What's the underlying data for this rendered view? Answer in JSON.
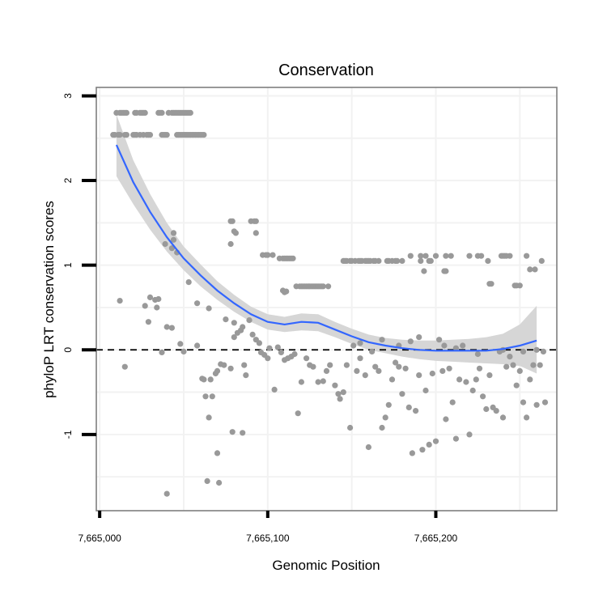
{
  "chart_data": {
    "type": "scatter",
    "title": "Conservation",
    "xlabel": "Genomic Position",
    "ylabel": "phyloP LRT conservation scores",
    "xlim": [
      7664998,
      7665272
    ],
    "ylim": [
      -1.9,
      3.1
    ],
    "x_ticks": [
      {
        "value": 7665000,
        "label": "7,665,000"
      },
      {
        "value": 7665100,
        "label": "7,665,100"
      },
      {
        "value": 7665200,
        "label": "7,665,200"
      }
    ],
    "y_ticks": [
      {
        "value": -1,
        "label": "-1"
      },
      {
        "value": 0,
        "label": "0"
      },
      {
        "value": 1,
        "label": "1"
      },
      {
        "value": 2,
        "label": "2"
      },
      {
        "value": 3,
        "label": "3"
      }
    ],
    "grid": true,
    "reference_line": {
      "y": 0,
      "style": "dashed"
    },
    "colors": {
      "points": "#999999",
      "smooth_line": "#3366ff",
      "confidence_band": "#d6d6d6",
      "panel_border": "#7f7f7f",
      "grid": "#f2f2f2"
    },
    "points": [
      [
        7665010,
        2.8
      ],
      [
        7665012,
        2.8
      ],
      [
        7665013,
        2.8
      ],
      [
        7665014,
        2.8
      ],
      [
        7665015,
        2.8
      ],
      [
        7665016,
        2.8
      ],
      [
        7665021,
        2.8
      ],
      [
        7665022,
        2.8
      ],
      [
        7665024,
        2.8
      ],
      [
        7665025,
        2.8
      ],
      [
        7665026,
        2.8
      ],
      [
        7665027,
        2.8
      ],
      [
        7665035,
        2.8
      ],
      [
        7665036,
        2.8
      ],
      [
        7665037,
        2.8
      ],
      [
        7665041,
        2.8
      ],
      [
        7665043,
        2.8
      ],
      [
        7665044,
        2.8
      ],
      [
        7665045,
        2.8
      ],
      [
        7665046,
        2.8
      ],
      [
        7665047,
        2.8
      ],
      [
        7665048,
        2.8
      ],
      [
        7665049,
        2.8
      ],
      [
        7665050,
        2.8
      ],
      [
        7665051,
        2.8
      ],
      [
        7665052,
        2.8
      ],
      [
        7665053,
        2.8
      ],
      [
        7665054,
        2.8
      ],
      [
        7665008,
        2.54
      ],
      [
        7665009,
        2.54
      ],
      [
        7665011,
        2.54
      ],
      [
        7665012,
        2.54
      ],
      [
        7665015,
        2.54
      ],
      [
        7665016,
        2.54
      ],
      [
        7665020,
        2.54
      ],
      [
        7665021,
        2.54
      ],
      [
        7665022,
        2.54
      ],
      [
        7665024,
        2.54
      ],
      [
        7665026,
        2.54
      ],
      [
        7665028,
        2.54
      ],
      [
        7665029,
        2.54
      ],
      [
        7665030,
        2.54
      ],
      [
        7665037,
        2.54
      ],
      [
        7665038,
        2.54
      ],
      [
        7665039,
        2.54
      ],
      [
        7665040,
        2.54
      ],
      [
        7665046,
        2.54
      ],
      [
        7665047,
        2.54
      ],
      [
        7665048,
        2.54
      ],
      [
        7665049,
        2.54
      ],
      [
        7665050,
        2.54
      ],
      [
        7665051,
        2.54
      ],
      [
        7665052,
        2.54
      ],
      [
        7665053,
        2.54
      ],
      [
        7665054,
        2.54
      ],
      [
        7665055,
        2.54
      ],
      [
        7665056,
        2.54
      ],
      [
        7665057,
        2.54
      ],
      [
        7665058,
        2.54
      ],
      [
        7665059,
        2.54
      ],
      [
        7665060,
        2.54
      ],
      [
        7665061,
        2.54
      ],
      [
        7665062,
        2.54
      ],
      [
        7665078,
        1.52
      ],
      [
        7665079,
        1.52
      ],
      [
        7665090,
        1.52
      ],
      [
        7665092,
        1.52
      ],
      [
        7665093,
        1.52
      ],
      [
        7665080,
        1.4
      ],
      [
        7665081,
        1.38
      ],
      [
        7665078,
        1.25
      ],
      [
        7665093,
        1.38
      ],
      [
        7665044,
        1.38
      ],
      [
        7665039,
        1.25
      ],
      [
        7665043,
        1.2
      ],
      [
        7665044,
        1.3
      ],
      [
        7665046,
        1.15
      ],
      [
        7665097,
        1.12
      ],
      [
        7665099,
        1.12
      ],
      [
        7665100,
        1.12
      ],
      [
        7665103,
        1.12
      ],
      [
        7665107,
        1.08
      ],
      [
        7665109,
        1.08
      ],
      [
        7665110,
        1.08
      ],
      [
        7665111,
        1.08
      ],
      [
        7665112,
        1.08
      ],
      [
        7665113,
        1.08
      ],
      [
        7665114,
        1.08
      ],
      [
        7665115,
        1.08
      ],
      [
        7665145,
        1.05
      ],
      [
        7665146,
        1.05
      ],
      [
        7665147,
        1.05
      ],
      [
        7665149,
        1.05
      ],
      [
        7665150,
        1.05
      ],
      [
        7665152,
        1.05
      ],
      [
        7665154,
        1.05
      ],
      [
        7665155,
        1.05
      ],
      [
        7665156,
        1.05
      ],
      [
        7665158,
        1.05
      ],
      [
        7665159,
        1.05
      ],
      [
        7665160,
        1.05
      ],
      [
        7665161,
        1.05
      ],
      [
        7665163,
        1.05
      ],
      [
        7665164,
        1.05
      ],
      [
        7665166,
        1.05
      ],
      [
        7665171,
        1.05
      ],
      [
        7665172,
        1.05
      ],
      [
        7665174,
        1.05
      ],
      [
        7665176,
        1.05
      ],
      [
        7665177,
        1.05
      ],
      [
        7665180,
        1.05
      ],
      [
        7665185,
        1.11
      ],
      [
        7665191,
        1.11
      ],
      [
        7665194,
        1.11
      ],
      [
        7665200,
        1.11
      ],
      [
        7665206,
        1.11
      ],
      [
        7665209,
        1.11
      ],
      [
        7665220,
        1.11
      ],
      [
        7665225,
        1.11
      ],
      [
        7665227,
        1.11
      ],
      [
        7665239,
        1.11
      ],
      [
        7665240,
        1.11
      ],
      [
        7665241,
        1.11
      ],
      [
        7665242,
        1.11
      ],
      [
        7665244,
        1.11
      ],
      [
        7665254,
        1.11
      ],
      [
        7665263,
        1.05
      ],
      [
        7665191,
        1.05
      ],
      [
        7665196,
        1.05
      ],
      [
        7665197,
        1.05
      ],
      [
        7665231,
        1.05
      ],
      [
        7665193,
        0.93
      ],
      [
        7665205,
        0.93
      ],
      [
        7665206,
        0.93
      ],
      [
        7665256,
        0.95
      ],
      [
        7665259,
        0.95
      ],
      [
        7665232,
        0.78
      ],
      [
        7665233,
        0.78
      ],
      [
        7665247,
        0.76
      ],
      [
        7665248,
        0.76
      ],
      [
        7665250,
        0.76
      ],
      [
        7665117,
        0.75
      ],
      [
        7665119,
        0.75
      ],
      [
        7665120,
        0.75
      ],
      [
        7665121,
        0.75
      ],
      [
        7665122,
        0.75
      ],
      [
        7665123,
        0.75
      ],
      [
        7665124,
        0.75
      ],
      [
        7665125,
        0.75
      ],
      [
        7665126,
        0.75
      ],
      [
        7665127,
        0.75
      ],
      [
        7665128,
        0.75
      ],
      [
        7665129,
        0.75
      ],
      [
        7665130,
        0.75
      ],
      [
        7665131,
        0.75
      ],
      [
        7665132,
        0.75
      ],
      [
        7665133,
        0.75
      ],
      [
        7665136,
        0.75
      ],
      [
        7665109,
        0.7
      ],
      [
        7665110,
        0.68
      ],
      [
        7665111,
        0.69
      ],
      [
        7665053,
        0.8
      ],
      [
        7665012,
        0.58
      ],
      [
        7665030,
        0.62
      ],
      [
        7665033,
        0.59
      ],
      [
        7665035,
        0.6
      ],
      [
        7665027,
        0.52
      ],
      [
        7665058,
        0.55
      ],
      [
        7665065,
        0.49
      ],
      [
        7665075,
        0.36
      ],
      [
        7665080,
        0.32
      ],
      [
        7665085,
        0.27
      ],
      [
        7665029,
        0.33
      ],
      [
        7665034,
        0.5
      ],
      [
        7665040,
        0.27
      ],
      [
        7665043,
        0.26
      ],
      [
        7665037,
        -0.03
      ],
      [
        7665015,
        -0.2
      ],
      [
        7665048,
        0.07
      ],
      [
        7665050,
        -0.02
      ],
      [
        7665058,
        0.05
      ],
      [
        7665061,
        -0.34
      ],
      [
        7665062,
        -0.35
      ],
      [
        7665063,
        -0.55
      ],
      [
        7665065,
        -0.8
      ],
      [
        7665066,
        -0.35
      ],
      [
        7665067,
        -0.55
      ],
      [
        7665069,
        -0.28
      ],
      [
        7665072,
        -0.17
      ],
      [
        7665074,
        -0.18
      ],
      [
        7665078,
        -0.22
      ],
      [
        7665080,
        0.15
      ],
      [
        7665082,
        0.2
      ],
      [
        7665084,
        0.23
      ],
      [
        7665086,
        -0.18
      ],
      [
        7665087,
        -0.3
      ],
      [
        7665089,
        0.35
      ],
      [
        7665091,
        0.18
      ],
      [
        7665093,
        0.12
      ],
      [
        7665095,
        0.08
      ],
      [
        7665096,
        -0.03
      ],
      [
        7665098,
        -0.06
      ],
      [
        7665100,
        -0.1
      ],
      [
        7665101,
        0.02
      ],
      [
        7665104,
        -0.47
      ],
      [
        7665106,
        0.03
      ],
      [
        7665070,
        -0.25
      ],
      [
        7665079,
        -0.97
      ],
      [
        7665070,
        -1.22
      ],
      [
        7665064,
        -1.55
      ],
      [
        7665071,
        -1.57
      ],
      [
        7665040,
        -1.7
      ],
      [
        7665085,
        -0.98
      ],
      [
        7665108,
        -0.03
      ],
      [
        7665110,
        -0.12
      ],
      [
        7665112,
        -0.1
      ],
      [
        7665114,
        -0.08
      ],
      [
        7665116,
        -0.05
      ],
      [
        7665118,
        -0.75
      ],
      [
        7665120,
        -0.38
      ],
      [
        7665123,
        -0.1
      ],
      [
        7665125,
        -0.18
      ],
      [
        7665127,
        -0.2
      ],
      [
        7665130,
        -0.38
      ],
      [
        7665133,
        -0.37
      ],
      [
        7665135,
        -0.25
      ],
      [
        7665137,
        -0.18
      ],
      [
        7665140,
        -0.42
      ],
      [
        7665142,
        -0.52
      ],
      [
        7665143,
        -0.58
      ],
      [
        7665145,
        -0.5
      ],
      [
        7665147,
        -0.18
      ],
      [
        7665149,
        -0.92
      ],
      [
        7665151,
        0.05
      ],
      [
        7665153,
        -0.25
      ],
      [
        7665155,
        -0.1
      ],
      [
        7665158,
        -0.3
      ],
      [
        7665160,
        -1.15
      ],
      [
        7665162,
        -0.02
      ],
      [
        7665164,
        -0.2
      ],
      [
        7665166,
        -0.25
      ],
      [
        7665168,
        -0.92
      ],
      [
        7665170,
        -0.8
      ],
      [
        7665172,
        -0.65
      ],
      [
        7665174,
        -0.35
      ],
      [
        7665176,
        -0.15
      ],
      [
        7665178,
        -0.2
      ],
      [
        7665180,
        -0.52
      ],
      [
        7665182,
        -0.22
      ],
      [
        7665184,
        -0.68
      ],
      [
        7665186,
        -1.22
      ],
      [
        7665188,
        -0.72
      ],
      [
        7665190,
        -0.3
      ],
      [
        7665192,
        -1.18
      ],
      [
        7665194,
        -0.48
      ],
      [
        7665196,
        -1.12
      ],
      [
        7665198,
        -0.28
      ],
      [
        7665200,
        -1.08
      ],
      [
        7665202,
        0.12
      ],
      [
        7665204,
        -0.25
      ],
      [
        7665206,
        -0.82
      ],
      [
        7665208,
        -0.22
      ],
      [
        7665210,
        -0.62
      ],
      [
        7665212,
        -1.05
      ],
      [
        7665214,
        -0.35
      ],
      [
        7665216,
        0.05
      ],
      [
        7665218,
        -0.38
      ],
      [
        7665220,
        -1.0
      ],
      [
        7665222,
        -0.48
      ],
      [
        7665224,
        -0.35
      ],
      [
        7665226,
        -0.22
      ],
      [
        7665228,
        -0.55
      ],
      [
        7665230,
        -0.7
      ],
      [
        7665232,
        -0.3
      ],
      [
        7665234,
        -0.68
      ],
      [
        7665236,
        -0.72
      ],
      [
        7665238,
        -0.02
      ],
      [
        7665240,
        -0.8
      ],
      [
        7665242,
        -0.2
      ],
      [
        7665244,
        -0.08
      ],
      [
        7665246,
        -0.18
      ],
      [
        7665248,
        -0.42
      ],
      [
        7665250,
        -0.25
      ],
      [
        7665252,
        -0.62
      ],
      [
        7665254,
        -0.8
      ],
      [
        7665256,
        -0.35
      ],
      [
        7665258,
        -0.18
      ],
      [
        7665260,
        -0.65
      ],
      [
        7665262,
        -0.18
      ],
      [
        7665264,
        -0.02
      ],
      [
        7665265,
        -0.62
      ],
      [
        7665155,
        0.08
      ],
      [
        7665168,
        0.12
      ],
      [
        7665178,
        0.05
      ],
      [
        7665185,
        0.1
      ],
      [
        7665190,
        0.15
      ],
      [
        7665205,
        0.05
      ],
      [
        7665212,
        0.02
      ],
      [
        7665225,
        -0.05
      ],
      [
        7665240,
        0.0
      ],
      [
        7665252,
        -0.02
      ],
      [
        7665260,
        0.0
      ]
    ],
    "smooth": {
      "x": [
        7665010,
        7665020,
        7665030,
        7665040,
        7665050,
        7665060,
        7665070,
        7665080,
        7665090,
        7665100,
        7665110,
        7665120,
        7665130,
        7665140,
        7665150,
        7665160,
        7665170,
        7665180,
        7665190,
        7665200,
        7665210,
        7665220,
        7665230,
        7665240,
        7665250,
        7665260
      ],
      "y": [
        2.42,
        1.98,
        1.63,
        1.33,
        1.08,
        0.88,
        0.7,
        0.55,
        0.42,
        0.33,
        0.3,
        0.33,
        0.32,
        0.24,
        0.16,
        0.09,
        0.05,
        0.02,
        0.0,
        -0.01,
        -0.01,
        -0.01,
        -0.01,
        0.01,
        0.05,
        0.11
      ],
      "lower": [
        2.05,
        1.72,
        1.42,
        1.16,
        0.94,
        0.75,
        0.59,
        0.45,
        0.33,
        0.24,
        0.21,
        0.23,
        0.22,
        0.15,
        0.07,
        0.0,
        -0.04,
        -0.08,
        -0.11,
        -0.13,
        -0.14,
        -0.15,
        -0.16,
        -0.17,
        -0.19,
        -0.28
      ],
      "upper": [
        2.78,
        2.24,
        1.84,
        1.5,
        1.22,
        1.01,
        0.81,
        0.65,
        0.51,
        0.42,
        0.39,
        0.43,
        0.42,
        0.33,
        0.25,
        0.18,
        0.14,
        0.12,
        0.11,
        0.11,
        0.12,
        0.13,
        0.15,
        0.19,
        0.3,
        0.52
      ]
    }
  }
}
